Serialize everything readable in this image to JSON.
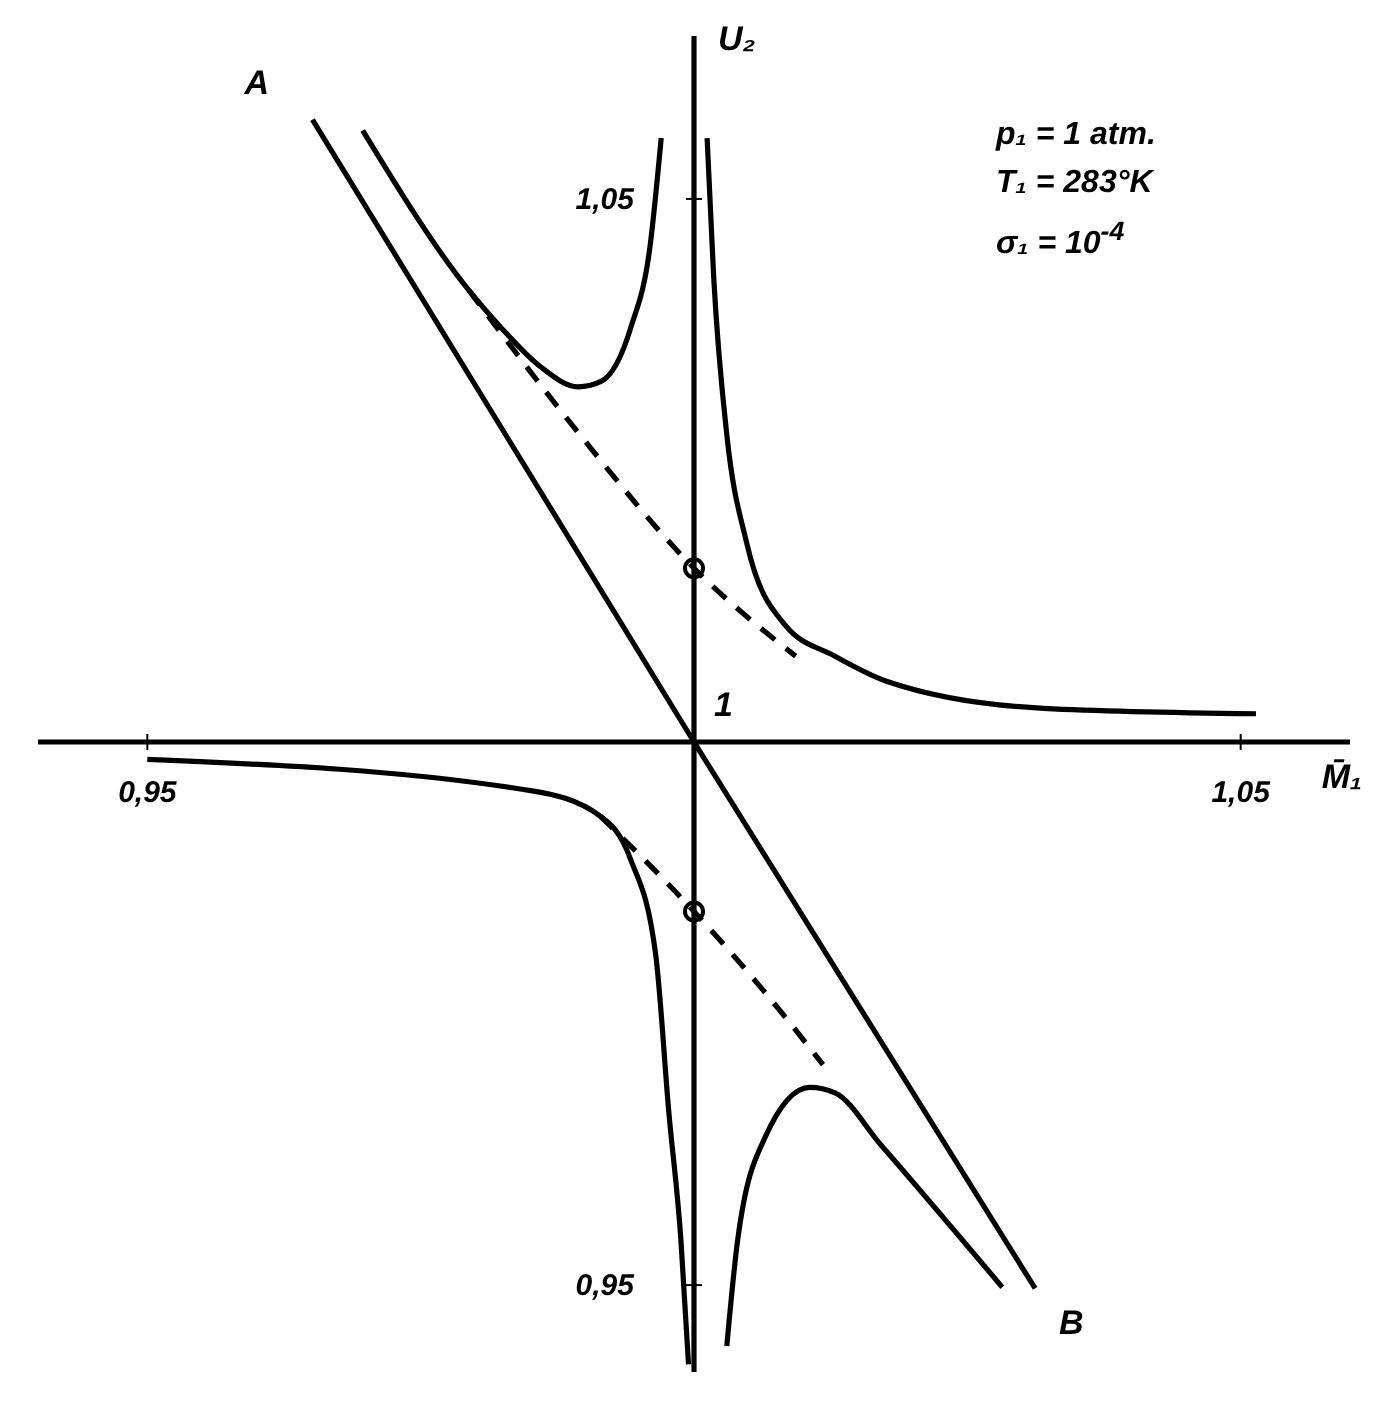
{
  "chart_data": {
    "type": "line",
    "xlabel": "M̄₁",
    "ylabel": "U₂",
    "xlim": [
      0.94,
      1.06
    ],
    "ylim": [
      0.942,
      1.065
    ],
    "xticks": [
      {
        "value": 0.95,
        "label": "0,95"
      },
      {
        "value": 1,
        "label": null
      },
      {
        "value": 1.05,
        "label": "1,05"
      }
    ],
    "yticks": [
      {
        "value": 0.95,
        "label": "0,95"
      },
      {
        "value": 1,
        "label": null
      },
      {
        "value": 1.05,
        "label": "1,05"
      }
    ],
    "series": [
      {
        "type": "line",
        "color": "#000000",
        "line_style": "solid",
        "x": [
          0.9651,
          1,
          1.0312
        ],
        "values": [
          1.0573,
          1,
          0.9497
        ]
      },
      {
        "type": "line",
        "color": "#000000",
        "line_style": "solid",
        "x": [
          0.9697,
          0.9794,
          0.9824,
          0.9859,
          0.9894,
          0.9915,
          0.9942,
          0.996,
          0.997
        ],
        "values": [
          1.0563,
          1.0416,
          1.0381,
          1.0346,
          1.0327,
          1.0332,
          1.0381,
          1.0458,
          1.0556
        ]
      },
      {
        "type": "line",
        "color": "#000000",
        "line_style": "solid",
        "x": [
          1.0012,
          1.0018,
          1.003,
          1.0048,
          1.0083,
          1.0129,
          1.0176,
          1.032,
          1.0514
        ],
        "values": [
          1.0556,
          1.0428,
          1.0283,
          1.0184,
          1.0108,
          1.0079,
          1.0056,
          1.0031,
          1.0026
        ]
      },
      {
        "type": "line",
        "color": "#000000",
        "line_style": "dashed",
        "x": [
          0.9794,
          0.9894,
          1,
          1.0093
        ],
        "values": [
          1.0416,
          1.0285,
          1.016,
          1.0079
        ]
      },
      {
        "type": "line",
        "color": "#000000",
        "line_style": "solid",
        "x": [
          0.95,
          0.9852,
          0.9914,
          0.9942,
          0.9965,
          0.9977,
          0.9988,
          0.9995
        ],
        "values": [
          0.9984,
          0.9955,
          0.9932,
          0.9892,
          0.9804,
          0.9659,
          0.9542,
          0.9427
        ]
      },
      {
        "type": "line",
        "color": "#000000",
        "line_style": "dashed",
        "x": [
          0.9914,
          1,
          1.0062,
          1.0118
        ],
        "values": [
          0.9932,
          0.9844,
          0.9773,
          0.9703
        ]
      },
      {
        "type": "line",
        "color": "#000000",
        "line_style": "solid",
        "x": [
          1.003,
          1.004,
          1.0065,
          1.0106,
          1.0129,
          1.0171,
          1.0282
        ],
        "values": [
          0.9444,
          0.9542,
          0.9636,
          0.9682,
          0.9677,
          0.9629,
          0.9498
        ]
      },
      {
        "type": "scatter",
        "color": "#000000",
        "marker": "circle",
        "x": [
          1,
          1
        ],
        "values": [
          1.016,
          0.9844
        ]
      }
    ],
    "annotations": [
      {
        "text": "1",
        "x": 1,
        "y": 1
      },
      {
        "text": "A",
        "x": 0.9651,
        "y": 1.0573
      },
      {
        "text": "B",
        "x": 1.0312,
        "y": 0.9497
      },
      "p₁ = 1 atm.",
      "T₁ = 283°K",
      "σ₁ = 10$^{-4}$"
    ]
  }
}
